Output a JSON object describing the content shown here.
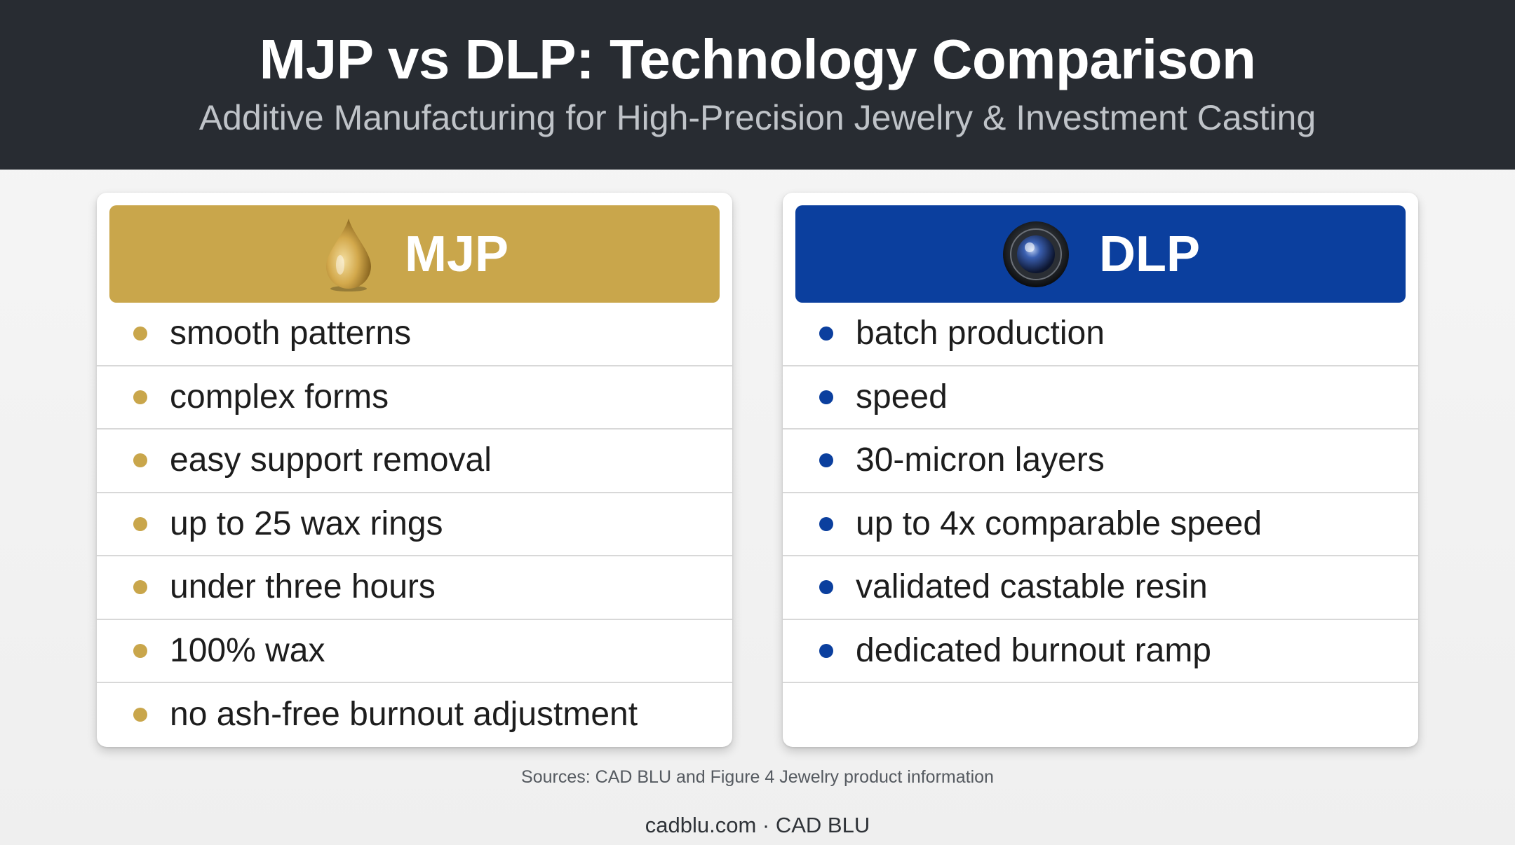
{
  "header": {
    "title": "MJP vs DLP: Technology Comparison",
    "subtitle": "Additive Manufacturing for High-Precision Jewelry & Investment Casting"
  },
  "cards": {
    "mjp": {
      "title": "MJP",
      "icon": "wax-drop-icon",
      "accent": "#c9a64b",
      "items": [
        "smooth patterns",
        "complex forms",
        "easy support removal",
        "up to 25 wax rings",
        "under three hours",
        "100% wax",
        "no ash-free burnout adjustment"
      ]
    },
    "dlp": {
      "title": "DLP",
      "icon": "projector-lens-icon",
      "accent": "#0b3f9e",
      "items": [
        "batch production",
        "speed",
        "30-micron layers",
        "up to 4x comparable speed",
        "validated castable resin",
        "dedicated burnout ramp"
      ]
    }
  },
  "sources": "Sources: CAD BLU and Figure 4 Jewelry product information",
  "footer": "cadblu.com · CAD BLU",
  "colors": {
    "header_bg": "#282c32",
    "page_bg": "#f3f3f3"
  }
}
